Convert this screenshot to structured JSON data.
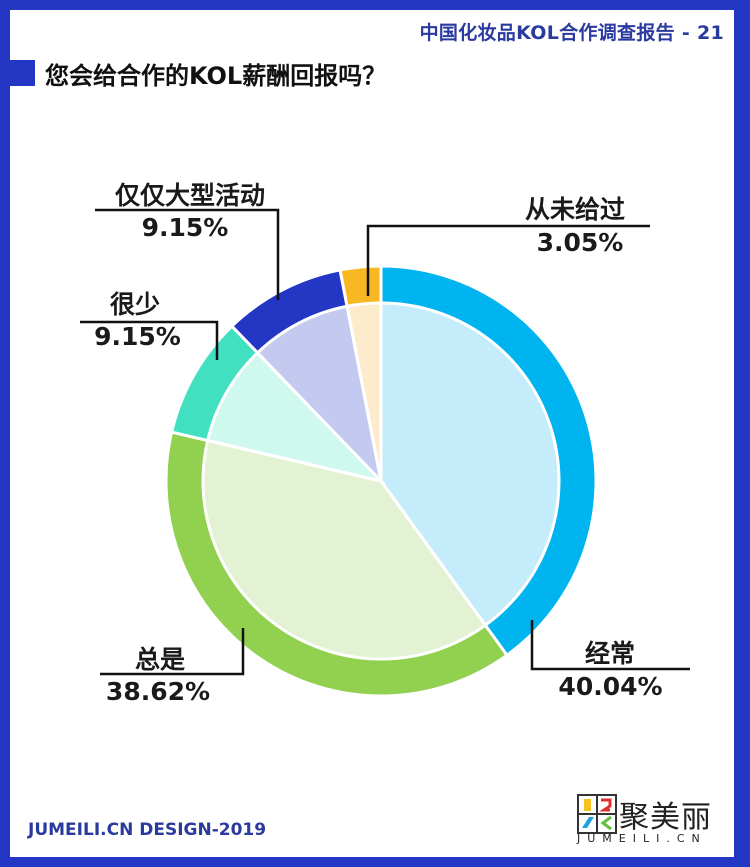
{
  "header": {
    "report_title": "中国化妆品KOL合作调查报告 - 21",
    "question": "您会给合作的KOL薪酬回报吗？"
  },
  "labels": {
    "often": {
      "name": "经常",
      "value": "40.04%"
    },
    "always": {
      "name": "总是",
      "value": "38.62%"
    },
    "rarely": {
      "name": "很少",
      "value": "9.15%"
    },
    "large_events": {
      "name": "仅仅大型活动",
      "value": "9.15%"
    },
    "never": {
      "name": "从未给过",
      "value": "3.05%"
    }
  },
  "footer": {
    "design_credit": "JUMEILI.CN DESIGN-2019",
    "logo_cn": "聚美丽",
    "logo_en": "JUMEILI.CN"
  },
  "chart_data": {
    "type": "pie",
    "title": "您会给合作的KOL薪酬回报吗？",
    "categories": [
      "经常",
      "总是",
      "很少",
      "仅仅大型活动",
      "从未给过"
    ],
    "values": [
      40.04,
      38.62,
      9.15,
      9.15,
      3.05
    ],
    "unit": "%",
    "start_angle": "12 o'clock",
    "direction": "clockwise",
    "colors_outer": [
      "#00b4f0",
      "#92d050",
      "#40e0c0",
      "#2436c4",
      "#f8b824"
    ],
    "colors_inner": [
      "#c4ecfa",
      "#e4f2d4",
      "#cff8ef",
      "#c4c9f0",
      "#fdeccc"
    ],
    "legend": "leader-line labels"
  }
}
